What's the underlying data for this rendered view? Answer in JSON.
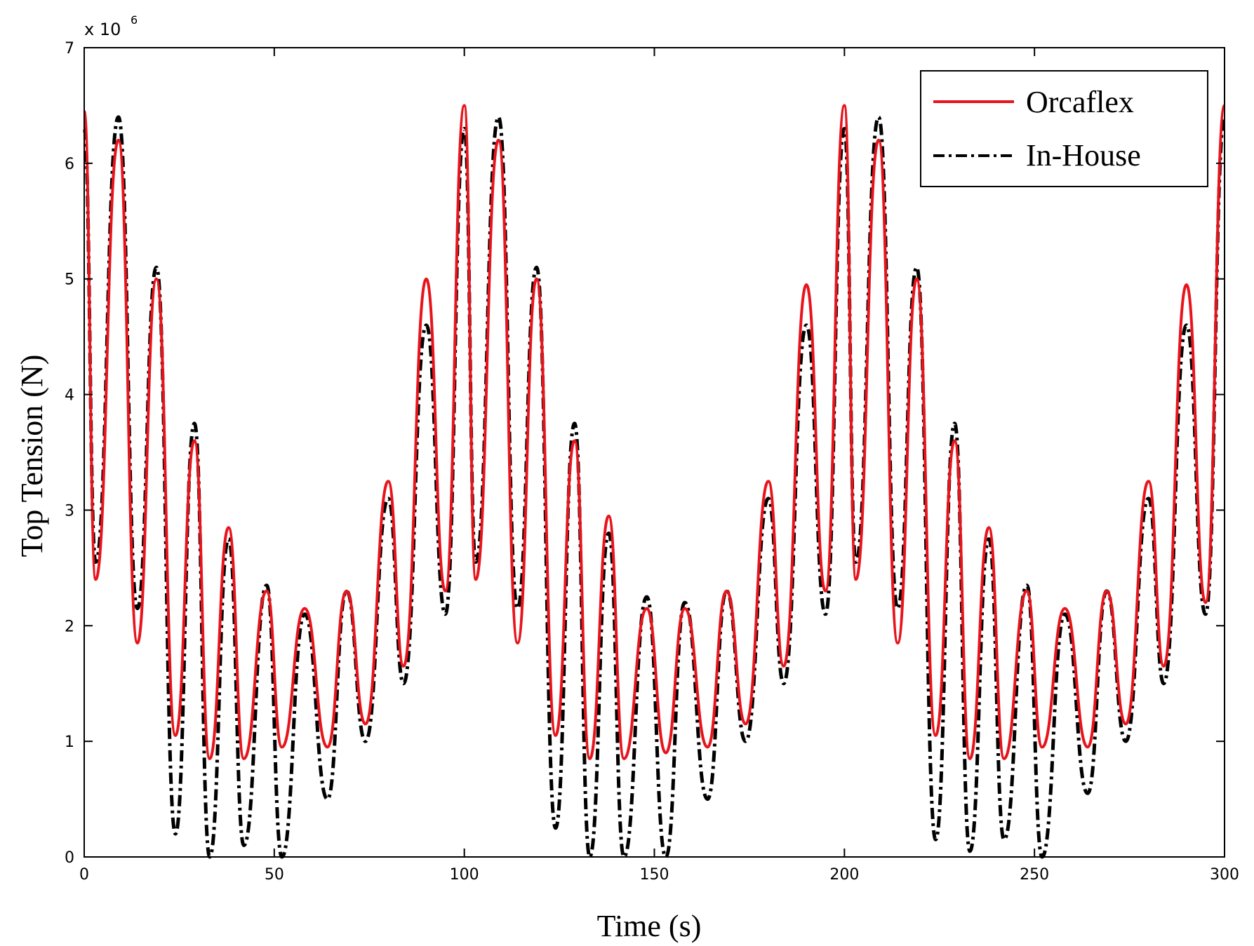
{
  "chart_data": {
    "type": "line",
    "title": "",
    "xlabel": "Time (s)",
    "ylabel": "Top Tension (N)",
    "y_multiplier": {
      "base": "x 10",
      "exponent": "6"
    },
    "xlim": [
      0,
      300
    ],
    "ylim": [
      0,
      7
    ],
    "xticks": [
      0,
      50,
      100,
      150,
      200,
      250,
      300
    ],
    "yticks": [
      0,
      1,
      2,
      3,
      4,
      5,
      6,
      7
    ],
    "grid": false,
    "legend_position": "top-right",
    "series": [
      {
        "name": "Orcaflex",
        "color": "#e8141c",
        "style": "solid",
        "points": [
          [
            0,
            6.45
          ],
          [
            3,
            2.4
          ],
          [
            9,
            6.2
          ],
          [
            14,
            1.85
          ],
          [
            19,
            5.0
          ],
          [
            24,
            1.05
          ],
          [
            29,
            3.6
          ],
          [
            33,
            0.85
          ],
          [
            38,
            2.85
          ],
          [
            42,
            0.85
          ],
          [
            48,
            2.3
          ],
          [
            52,
            0.95
          ],
          [
            58,
            2.15
          ],
          [
            64,
            0.95
          ],
          [
            69,
            2.3
          ],
          [
            74,
            1.15
          ],
          [
            80,
            3.25
          ],
          [
            84,
            1.65
          ],
          [
            90,
            5.0
          ],
          [
            95,
            2.3
          ],
          [
            100,
            6.5
          ],
          [
            103,
            2.4
          ],
          [
            109,
            6.2
          ],
          [
            114,
            1.85
          ],
          [
            119,
            5.0
          ],
          [
            124,
            1.05
          ],
          [
            129,
            3.6
          ],
          [
            133,
            0.85
          ],
          [
            138,
            2.95
          ],
          [
            142,
            0.85
          ],
          [
            148,
            2.15
          ],
          [
            153,
            0.9
          ],
          [
            158,
            2.15
          ],
          [
            164,
            0.95
          ],
          [
            169,
            2.3
          ],
          [
            174,
            1.15
          ],
          [
            180,
            3.25
          ],
          [
            184,
            1.65
          ],
          [
            190,
            4.95
          ],
          [
            195,
            2.3
          ],
          [
            200,
            6.5
          ],
          [
            203,
            2.4
          ],
          [
            209,
            6.2
          ],
          [
            214,
            1.85
          ],
          [
            219,
            5.0
          ],
          [
            224,
            1.05
          ],
          [
            229,
            3.6
          ],
          [
            233,
            0.85
          ],
          [
            238,
            2.85
          ],
          [
            242,
            0.85
          ],
          [
            248,
            2.3
          ],
          [
            252,
            0.95
          ],
          [
            258,
            2.15
          ],
          [
            264,
            0.95
          ],
          [
            269,
            2.3
          ],
          [
            274,
            1.15
          ],
          [
            280,
            3.25
          ],
          [
            284,
            1.65
          ],
          [
            290,
            4.95
          ],
          [
            295,
            2.2
          ],
          [
            300,
            6.5
          ]
        ]
      },
      {
        "name": "In-House",
        "color": "#000000",
        "style": "dash-dot",
        "points": [
          [
            0,
            6.3
          ],
          [
            3,
            2.55
          ],
          [
            9,
            6.4
          ],
          [
            14,
            2.15
          ],
          [
            19,
            5.1
          ],
          [
            24,
            0.2
          ],
          [
            29,
            3.75
          ],
          [
            33,
            0.0
          ],
          [
            38,
            2.75
          ],
          [
            42,
            0.1
          ],
          [
            48,
            2.35
          ],
          [
            52,
            0.0
          ],
          [
            58,
            2.1
          ],
          [
            64,
            0.5
          ],
          [
            69,
            2.3
          ],
          [
            74,
            1.0
          ],
          [
            80,
            3.1
          ],
          [
            84,
            1.5
          ],
          [
            90,
            4.6
          ],
          [
            95,
            2.1
          ],
          [
            100,
            6.3
          ],
          [
            103,
            2.55
          ],
          [
            109,
            6.4
          ],
          [
            114,
            2.15
          ],
          [
            119,
            5.1
          ],
          [
            124,
            0.25
          ],
          [
            129,
            3.75
          ],
          [
            133,
            0.0
          ],
          [
            138,
            2.8
          ],
          [
            142,
            0.0
          ],
          [
            148,
            2.25
          ],
          [
            153,
            0.0
          ],
          [
            158,
            2.2
          ],
          [
            164,
            0.5
          ],
          [
            169,
            2.3
          ],
          [
            174,
            1.0
          ],
          [
            180,
            3.1
          ],
          [
            184,
            1.5
          ],
          [
            190,
            4.6
          ],
          [
            195,
            2.1
          ],
          [
            200,
            6.3
          ],
          [
            203,
            2.55
          ],
          [
            209,
            6.4
          ],
          [
            214,
            2.15
          ],
          [
            219,
            5.1
          ],
          [
            224,
            0.15
          ],
          [
            229,
            3.75
          ],
          [
            233,
            0.05
          ],
          [
            238,
            2.75
          ],
          [
            242,
            0.15
          ],
          [
            248,
            2.35
          ],
          [
            252,
            0.0
          ],
          [
            258,
            2.1
          ],
          [
            264,
            0.55
          ],
          [
            269,
            2.3
          ],
          [
            274,
            1.0
          ],
          [
            280,
            3.1
          ],
          [
            284,
            1.5
          ],
          [
            290,
            4.6
          ],
          [
            295,
            2.1
          ],
          [
            300,
            6.4
          ]
        ]
      }
    ]
  }
}
